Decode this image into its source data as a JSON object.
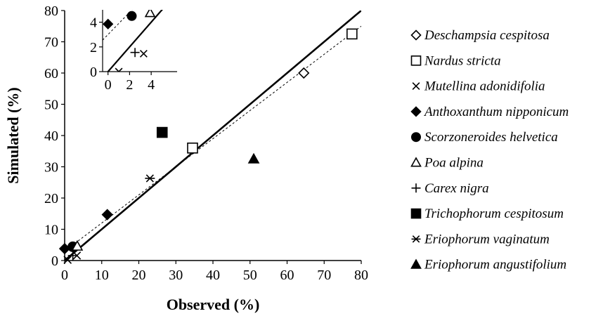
{
  "chart_data": [
    {
      "type": "scatter",
      "title": "",
      "xlabel": "Observed (%)",
      "ylabel": "Simulated (%)",
      "xlim": [
        0,
        80
      ],
      "ylim": [
        0,
        80
      ],
      "x_ticks": [
        "0",
        "10",
        "20",
        "30",
        "40",
        "50",
        "60",
        "70",
        "80"
      ],
      "y_ticks": [
        "0",
        "10",
        "20",
        "30",
        "40",
        "50",
        "60",
        "70",
        "80"
      ],
      "grid": false,
      "legend_position": "right",
      "reference_line": "1:1",
      "regression_line": {
        "style": "dashed",
        "intercept": 3.0,
        "slope": 0.9
      },
      "series": [
        {
          "name": "Deschampsia cespitosa",
          "marker": "diamond-open",
          "points": [
            [
              64.5,
              60.0
            ]
          ]
        },
        {
          "name": "Nardus stricta",
          "marker": "square-open",
          "points": [
            [
              77.5,
              72.5
            ],
            [
              34.5,
              36.0
            ]
          ]
        },
        {
          "name": "Mutellina adonidifolia",
          "marker": "x",
          "points": [
            [
              0.8,
              0.2
            ],
            [
              3.3,
              1.6
            ]
          ]
        },
        {
          "name": "Anthoxanthum nipponicum",
          "marker": "diamond-filled",
          "points": [
            [
              0.0,
              3.8
            ],
            [
              11.5,
              14.7
            ]
          ]
        },
        {
          "name": "Scorzoneroides helvetica",
          "marker": "circle-filled",
          "points": [
            [
              2.2,
              4.4
            ]
          ]
        },
        {
          "name": "Poa alpina",
          "marker": "triangle-open",
          "points": [
            [
              3.4,
              4.6
            ]
          ]
        },
        {
          "name": "Carex nigra",
          "marker": "plus",
          "points": [
            [
              2.2,
              1.6
            ]
          ]
        },
        {
          "name": "Trichophorum cespitosum",
          "marker": "square-filled",
          "points": [
            [
              26.3,
              41.0
            ]
          ]
        },
        {
          "name": "Eriophorum vaginatum",
          "marker": "asterisk",
          "points": [
            [
              23.0,
              26.3
            ]
          ]
        },
        {
          "name": "Eriophorum angustifolium",
          "marker": "triangle-filled",
          "points": [
            [
              51.0,
              32.5
            ]
          ]
        }
      ]
    },
    {
      "type": "scatter",
      "role": "inset",
      "title": "",
      "xlim": [
        -0.5,
        6.4
      ],
      "ylim": [
        0,
        5
      ],
      "x_ticks": [
        "0",
        "2",
        "4"
      ],
      "y_ticks": [
        "0",
        "2",
        "4"
      ],
      "reference_line": "1:1",
      "regression_line": {
        "style": "dashed",
        "intercept": 3.0,
        "slope": 0.9
      },
      "series": [
        {
          "name": "Anthoxanthum nipponicum",
          "marker": "diamond-filled",
          "points": [
            [
              0.0,
              3.85
            ]
          ]
        },
        {
          "name": "Scorzoneroides helvetica",
          "marker": "circle-filled",
          "points": [
            [
              2.2,
              4.5
            ]
          ]
        },
        {
          "name": "Poa alpina",
          "marker": "triangle-open",
          "points": [
            [
              3.9,
              4.75
            ]
          ]
        },
        {
          "name": "Mutellina adonidifolia",
          "marker": "x",
          "points": [
            [
              1.0,
              0.0
            ],
            [
              3.3,
              1.45
            ]
          ]
        },
        {
          "name": "Carex nigra",
          "marker": "plus",
          "points": [
            [
              2.5,
              1.55
            ]
          ]
        }
      ]
    }
  ]
}
